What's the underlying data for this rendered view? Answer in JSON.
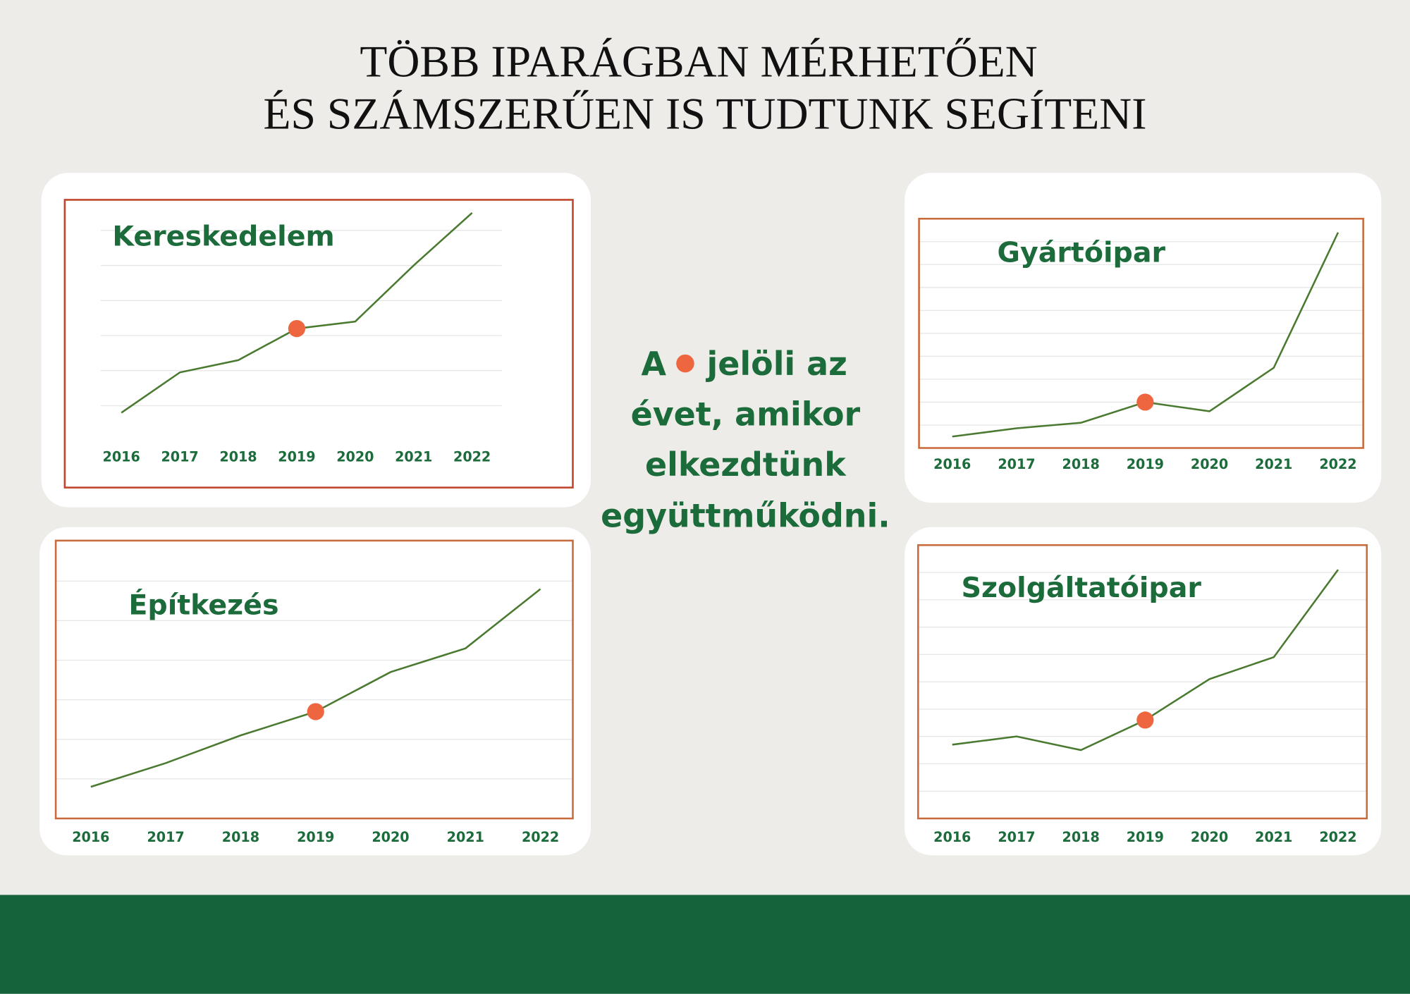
{
  "title": [
    "TÖBB IPARÁGBAN MÉRHETŐEN",
    "ÉS SZÁMSZERŰEN IS TUDTUNK SEGÍTENI"
  ],
  "note": {
    "first": "A",
    "after_dot": "jelöli az",
    "lines": [
      "évet, amikor",
      "elkezdtünk",
      "együttműködni."
    ]
  },
  "chart_data": [
    {
      "type": "line",
      "title": "Kereskedelem",
      "categories": [
        "2016",
        "2017",
        "2018",
        "2019",
        "2020",
        "2021",
        "2022"
      ],
      "values": [
        8,
        19.5,
        23,
        32,
        34,
        50,
        65
      ],
      "color": "#4a7a30",
      "highlight": "2019",
      "highlight_color": "#ee6640",
      "border_color": "#c0442a",
      "ylim": [
        0,
        70
      ],
      "yticks": [
        10,
        20,
        30,
        40,
        50,
        60
      ],
      "grid": true
    },
    {
      "type": "line",
      "title": "Gyártóipar",
      "categories": [
        "2016",
        "2017",
        "2018",
        "2019",
        "2020",
        "2021",
        "2022"
      ],
      "values": [
        5,
        8.6,
        11,
        20,
        16,
        35,
        94
      ],
      "color": "#4a7a30",
      "highlight": "2019",
      "highlight_color": "#ee6640",
      "border_color": "#c86a3a",
      "ylim": [
        0,
        100
      ],
      "yticks": [
        10,
        20,
        30,
        40,
        50,
        60,
        70,
        80,
        90
      ],
      "grid": true
    },
    {
      "type": "line",
      "title": "Építkezés",
      "categories": [
        "2016",
        "2017",
        "2018",
        "2019",
        "2020",
        "2021",
        "2022"
      ],
      "values": [
        8,
        14,
        21,
        27,
        37,
        43,
        58
      ],
      "color": "#4a7a30",
      "highlight": "2019",
      "highlight_color": "#ee6640",
      "border_color": "#c86a3a",
      "ylim": [
        0,
        70
      ],
      "yticks": [
        10,
        20,
        30,
        40,
        50,
        60
      ],
      "grid": true
    },
    {
      "type": "line",
      "title": "Szolgáltatóipar",
      "categories": [
        "2016",
        "2017",
        "2018",
        "2019",
        "2020",
        "2021",
        "2022"
      ],
      "values": [
        27,
        30,
        25,
        36,
        51,
        59,
        91
      ],
      "color": "#4a7a30",
      "highlight": "2019",
      "highlight_color": "#ee6640",
      "border_color": "#c86a3a",
      "ylim": [
        0,
        100
      ],
      "yticks": [
        10,
        20,
        30,
        40,
        50,
        60,
        70,
        80,
        90
      ],
      "grid": true
    }
  ]
}
